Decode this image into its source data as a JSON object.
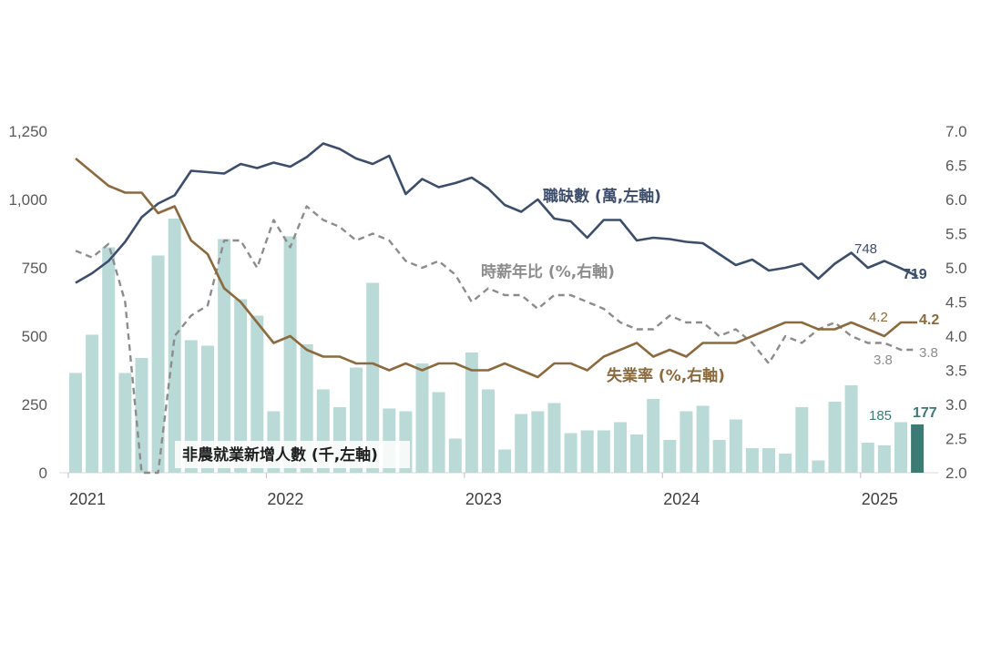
{
  "chart_data": {
    "type": "bar+line",
    "x_tick_labels": [
      "2021",
      "2022",
      "2023",
      "2024",
      "2025"
    ],
    "left_axis": {
      "ticks": [
        "0",
        "250",
        "500",
        "750",
        "1,000",
        "1,250"
      ],
      "ylim": [
        0,
        1250
      ]
    },
    "right_axis": {
      "ticks": [
        "2.0",
        "2.5",
        "3.0",
        "3.5",
        "4.0",
        "4.5",
        "5.0",
        "5.5",
        "6.0",
        "6.5",
        "7.0"
      ],
      "ylim": [
        2.0,
        7.0
      ]
    },
    "colors": {
      "bars": "#b9dad6",
      "last_bar": "#3d7a73",
      "job_openings": "#3d4e6b",
      "wages": "#8c8c8c",
      "unemployment": "#8a6a3e"
    },
    "x": [
      "2021-01",
      "2021-02",
      "2021-03",
      "2021-04",
      "2021-05",
      "2021-06",
      "2021-07",
      "2021-08",
      "2021-09",
      "2021-10",
      "2021-11",
      "2021-12",
      "2022-01",
      "2022-02",
      "2022-03",
      "2022-04",
      "2022-05",
      "2022-06",
      "2022-07",
      "2022-08",
      "2022-09",
      "2022-10",
      "2022-11",
      "2022-12",
      "2023-01",
      "2023-02",
      "2023-03",
      "2023-04",
      "2023-05",
      "2023-06",
      "2023-07",
      "2023-08",
      "2023-09",
      "2023-10",
      "2023-11",
      "2023-12",
      "2024-01",
      "2024-02",
      "2024-03",
      "2024-04",
      "2024-05",
      "2024-06",
      "2024-07",
      "2024-08",
      "2024-09",
      "2024-10",
      "2024-11",
      "2024-12",
      "2025-01",
      "2025-02",
      "2025-03",
      "2025-04"
    ],
    "series": [
      {
        "name": "非農就業新增人數 (千,左軸)",
        "type": "bar",
        "axis": "left",
        "values": [
          365,
          505,
          825,
          365,
          420,
          795,
          930,
          485,
          465,
          855,
          635,
          575,
          225,
          865,
          470,
          305,
          240,
          385,
          695,
          235,
          225,
          400,
          295,
          125,
          440,
          305,
          85,
          215,
          225,
          255,
          145,
          155,
          155,
          185,
          140,
          270,
          120,
          225,
          245,
          120,
          195,
          90,
          90,
          70,
          240,
          45,
          260,
          320,
          110,
          100,
          185,
          177
        ]
      },
      {
        "name": "職缺數 (萬,左軸)",
        "type": "line",
        "axis": "left",
        "values": [
          695,
          730,
          775,
          845,
          935,
          985,
          1015,
          1105,
          1100,
          1095,
          1130,
          1115,
          1135,
          1120,
          1155,
          1205,
          1185,
          1150,
          1130,
          1160,
          1020,
          1075,
          1045,
          1060,
          1080,
          1040,
          980,
          955,
          1000,
          930,
          920,
          860,
          925,
          925,
          850,
          860,
          855,
          845,
          840,
          800,
          760,
          780,
          740,
          750,
          765,
          710,
          765,
          805,
          750,
          775,
          748,
          719
        ]
      },
      {
        "name": "時薪年比 (%,右軸)",
        "type": "line",
        "dash": true,
        "axis": "right",
        "values": [
          5.25,
          5.15,
          5.35,
          4.5,
          0.2,
          1.5,
          4.0,
          4.3,
          4.45,
          5.4,
          5.4,
          5.0,
          5.7,
          5.3,
          5.9,
          5.7,
          5.6,
          5.4,
          5.5,
          5.4,
          5.1,
          5.0,
          5.1,
          4.9,
          4.5,
          4.7,
          4.6,
          4.6,
          4.4,
          4.6,
          4.6,
          4.5,
          4.4,
          4.2,
          4.1,
          4.1,
          4.3,
          4.2,
          4.2,
          4.0,
          4.1,
          3.9,
          3.6,
          4.0,
          3.9,
          4.1,
          4.2,
          4.0,
          3.9,
          3.9,
          3.8,
          3.8
        ]
      },
      {
        "name": "失業率 (%,右軸)",
        "type": "line",
        "axis": "right",
        "values": [
          6.6,
          6.4,
          6.2,
          6.1,
          6.1,
          5.8,
          5.9,
          5.4,
          5.2,
          4.7,
          4.5,
          4.2,
          3.9,
          4.0,
          3.8,
          3.7,
          3.7,
          3.6,
          3.6,
          3.5,
          3.6,
          3.5,
          3.6,
          3.6,
          3.5,
          3.5,
          3.6,
          3.5,
          3.4,
          3.6,
          3.6,
          3.5,
          3.7,
          3.8,
          3.9,
          3.7,
          3.8,
          3.7,
          3.9,
          3.9,
          3.9,
          4.0,
          4.1,
          4.2,
          4.2,
          4.1,
          4.1,
          4.2,
          4.1,
          4.0,
          4.2,
          4.2
        ]
      }
    ],
    "labels": {
      "payrolls": "非農就業新增人數 (千,左軸)",
      "job_openings": "職缺數 (萬,左軸)",
      "wages": "時薪年比 (%,右軸)",
      "unemployment": "失業率 (%,右軸)"
    },
    "end_labels": {
      "bar_prev": "185",
      "bar_last": "177",
      "jolts_prev": "748",
      "jolts_last": "719",
      "unemp_prev": "4.2",
      "unemp_last": "4.2",
      "wage_prev": "3.8",
      "wage_last": "3.8"
    }
  }
}
